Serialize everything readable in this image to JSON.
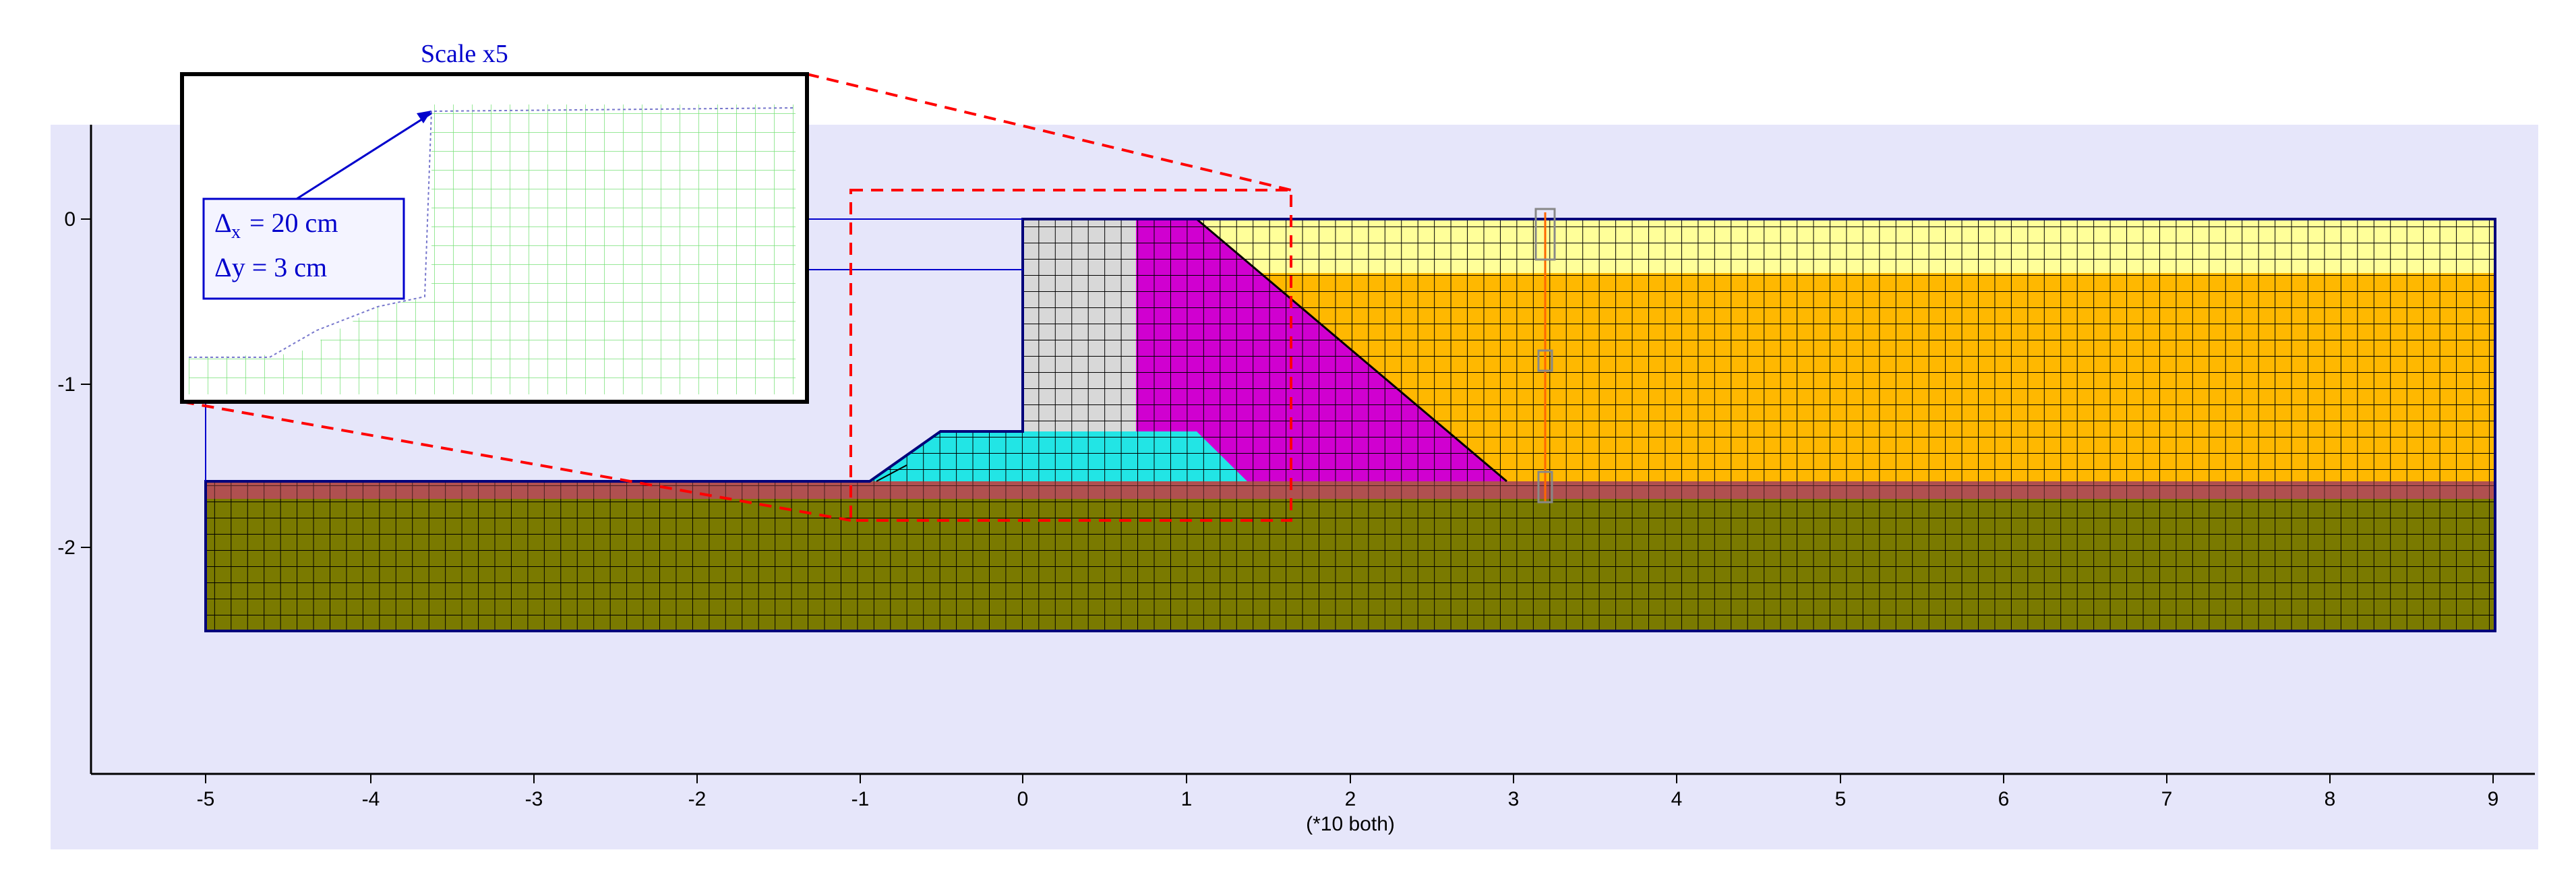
{
  "figure": {
    "inset": {
      "title": "Scale x5",
      "delta_x_symbol": "Δ",
      "delta_x_sub": "x",
      "delta_x_value": " = 20 cm",
      "delta_y_line": "Δy = 3 cm"
    },
    "axis": {
      "x_ticks": [
        "-5",
        "-4",
        "-3",
        "-2",
        "-1",
        "0",
        "1",
        "2",
        "3",
        "4",
        "5",
        "6",
        "7",
        "8",
        "9"
      ],
      "y_ticks": [
        "0",
        "-1",
        "-2"
      ],
      "x_unit_note": "(*10 both)"
    },
    "colors": {
      "panel_background": "#e6e6fa",
      "foundation": "#7a7a00",
      "thin_layer": "#b05050",
      "wall": "#d8d8d8",
      "wedge": "#d000d0",
      "toe_berm": "#22e5e5",
      "backfill_top": "#ffff99",
      "backfill": "#ffb800",
      "mesh_lines": "#000000",
      "zoom_box": "#ff0000",
      "inset_text": "#0000cc",
      "outline": "#00007a"
    }
  }
}
